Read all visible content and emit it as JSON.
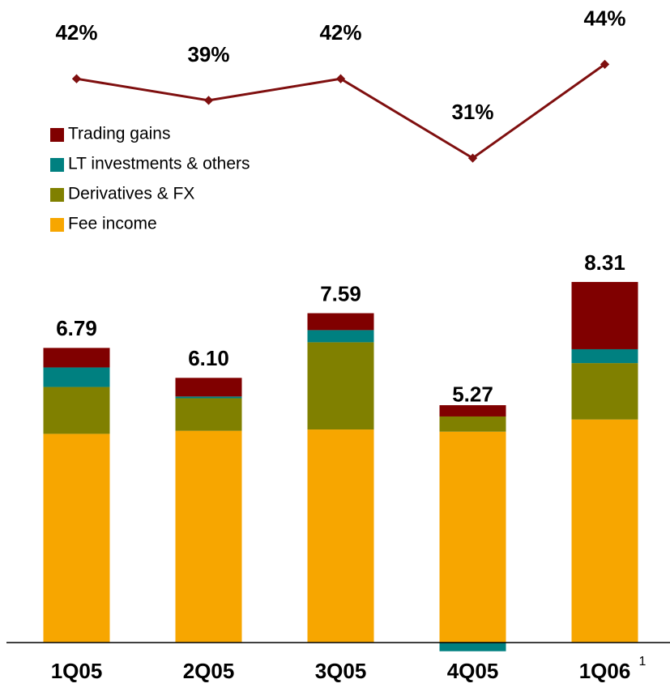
{
  "chart_data": {
    "type": "stacked_bar_line",
    "categories": [
      "1Q05",
      "2Q05",
      "3Q05",
      "4Q05",
      "1Q06"
    ],
    "category_superscripts": [
      null,
      null,
      null,
      null,
      "1"
    ],
    "series": [
      {
        "name": "Fee income",
        "color": "#f7a600",
        "values": [
          4.81,
          4.88,
          4.91,
          4.86,
          5.14
        ]
      },
      {
        "name": "Derivatives & FX",
        "color": "#808000",
        "values": [
          1.08,
          0.75,
          2.01,
          0.35,
          1.3
        ]
      },
      {
        "name": "LT investments & others",
        "color": "#008080",
        "values": [
          0.45,
          0.04,
          0.28,
          -0.2,
          0.32
        ]
      },
      {
        "name": "Trading gains",
        "color": "#800000",
        "values": [
          0.45,
          0.43,
          0.39,
          0.26,
          1.55
        ]
      }
    ],
    "totals": [
      6.79,
      6.1,
      7.59,
      5.27,
      8.31
    ],
    "totals_labels": [
      "6.79",
      "6.10",
      "7.59",
      "5.27",
      "8.31"
    ],
    "line": {
      "color": "#7f0f0f",
      "axis": "y2",
      "values": [
        42,
        39,
        42,
        31,
        44
      ],
      "value_labels": [
        "42%",
        "39%",
        "42%",
        "31%",
        "44%"
      ]
    },
    "ylim": [
      0,
      9
    ],
    "y2lim": [
      20,
      50
    ],
    "legend": "top-left"
  }
}
